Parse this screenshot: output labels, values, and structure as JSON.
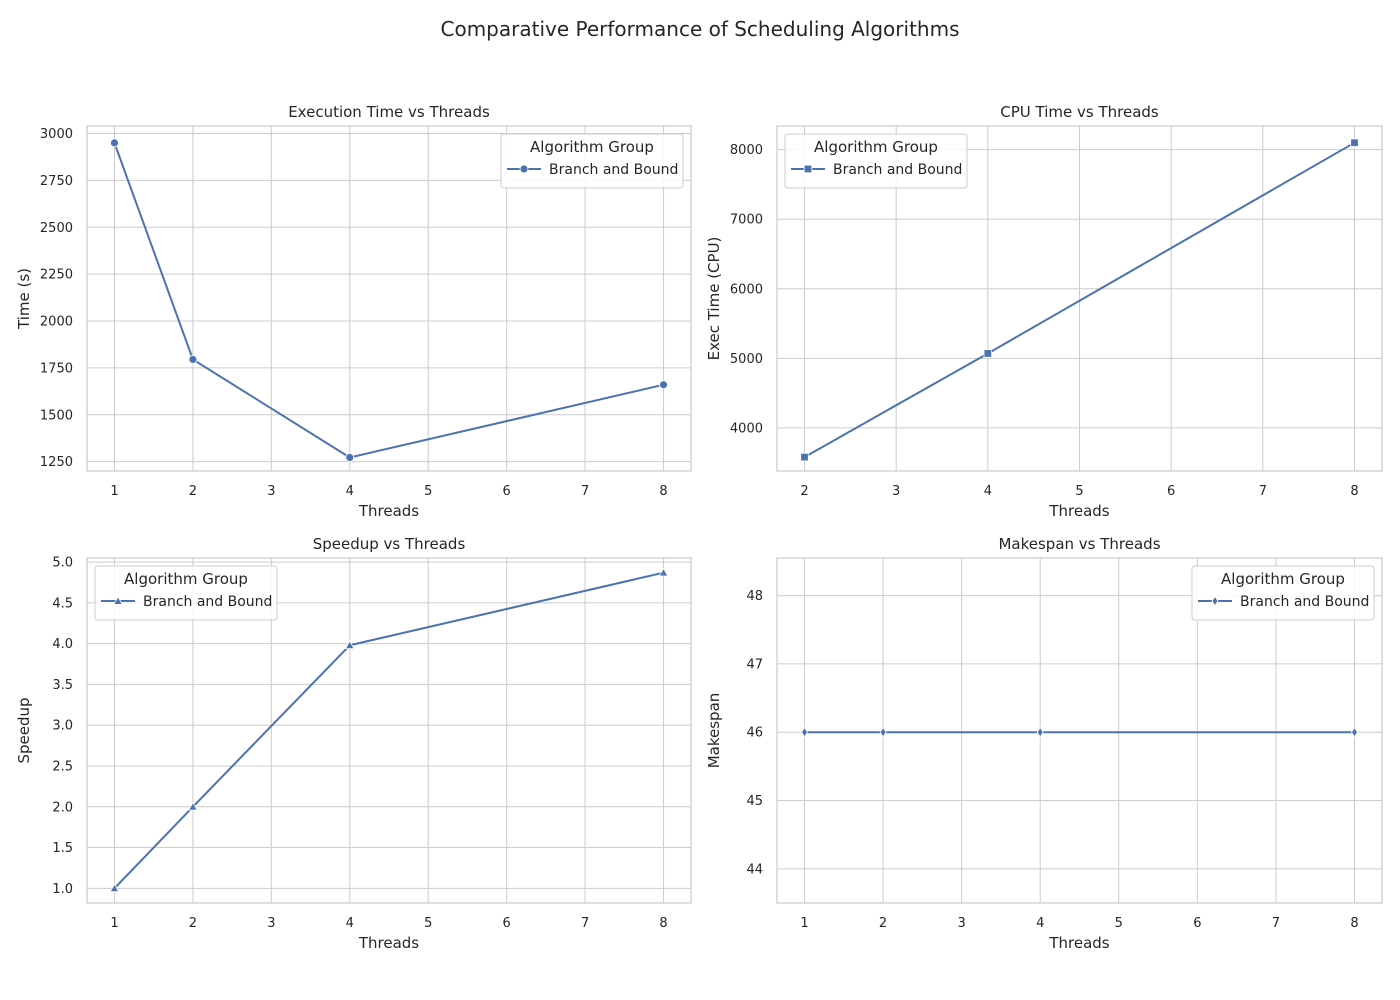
{
  "figure": {
    "title": "Comparative Performance of Scheduling Algorithms"
  },
  "colors": {
    "series": "#4c72b0",
    "grid": "#cccccc",
    "text": "#262626"
  },
  "chart_data": [
    {
      "type": "line",
      "title": "Execution Time vs Threads",
      "xlabel": "Threads",
      "ylabel": "Time (s)",
      "xlim": [
        0.65,
        8.35
      ],
      "ylim": [
        1200,
        3040
      ],
      "xticks": [
        1,
        2,
        3,
        4,
        5,
        6,
        7,
        8
      ],
      "yticks": [
        1250,
        1500,
        1750,
        2000,
        2250,
        2500,
        2750,
        3000
      ],
      "grid": true,
      "legend": {
        "title": "Algorithm Group",
        "position": "top-right"
      },
      "series": [
        {
          "name": "Branch and Bound",
          "marker": "circle",
          "x": [
            1,
            2,
            4,
            8
          ],
          "y": [
            2950,
            1795,
            1272,
            1660
          ]
        }
      ]
    },
    {
      "type": "line",
      "title": "CPU Time vs Threads",
      "xlabel": "Threads",
      "ylabel": "Exec Time (CPU)",
      "xlim": [
        1.7,
        8.3
      ],
      "ylim": [
        3380,
        8340
      ],
      "xticks": [
        2,
        3,
        4,
        5,
        6,
        7,
        8
      ],
      "yticks": [
        4000,
        5000,
        6000,
        7000,
        8000
      ],
      "grid": true,
      "legend": {
        "title": "Algorithm Group",
        "position": "top-left"
      },
      "series": [
        {
          "name": "Branch and Bound",
          "marker": "square",
          "x": [
            2,
            4,
            8
          ],
          "y": [
            3580,
            5070,
            8100
          ]
        }
      ]
    },
    {
      "type": "line",
      "title": "Speedup vs Threads",
      "xlabel": "Threads",
      "ylabel": "Speedup",
      "xlim": [
        0.65,
        8.35
      ],
      "ylim": [
        0.82,
        5.05
      ],
      "xticks": [
        1,
        2,
        3,
        4,
        5,
        6,
        7,
        8
      ],
      "yticks": [
        1.0,
        1.5,
        2.0,
        2.5,
        3.0,
        3.5,
        4.0,
        4.5,
        5.0
      ],
      "ytick_labels": [
        "1.0",
        "1.5",
        "2.0",
        "2.5",
        "3.0",
        "3.5",
        "4.0",
        "4.5",
        "5.0"
      ],
      "grid": true,
      "legend": {
        "title": "Algorithm Group",
        "position": "top-left"
      },
      "series": [
        {
          "name": "Branch and Bound",
          "marker": "triangle",
          "x": [
            1,
            2,
            4,
            8
          ],
          "y": [
            1.0,
            2.0,
            3.98,
            4.87
          ]
        }
      ]
    },
    {
      "type": "line",
      "title": "Makespan vs Threads",
      "xlabel": "Threads",
      "ylabel": "Makespan",
      "xlim": [
        0.65,
        8.35
      ],
      "ylim": [
        43.5,
        48.55
      ],
      "xticks": [
        1,
        2,
        3,
        4,
        5,
        6,
        7,
        8
      ],
      "yticks": [
        44,
        45,
        46,
        47,
        48
      ],
      "grid": true,
      "legend": {
        "title": "Algorithm Group",
        "position": "top-right"
      },
      "series": [
        {
          "name": "Branch and Bound",
          "marker": "diamond",
          "x": [
            1,
            2,
            4,
            8
          ],
          "y": [
            46,
            46,
            46,
            46
          ]
        }
      ]
    }
  ]
}
